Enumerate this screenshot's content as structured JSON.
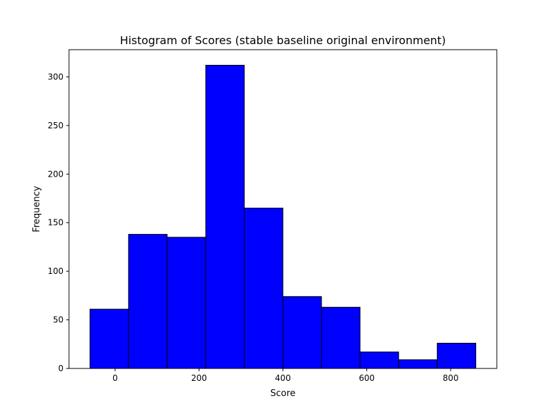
{
  "chart_data": {
    "type": "bar",
    "title": "Histogram of Scores (stable baseline original environment)",
    "xlabel": "Score",
    "ylabel": "Frequency",
    "bin_edges": [
      -60,
      32,
      124,
      216,
      308,
      400,
      492,
      584,
      676,
      768,
      860
    ],
    "values": [
      61,
      138,
      135,
      312,
      165,
      74,
      63,
      17,
      9,
      26
    ],
    "xlim": [
      -110,
      910
    ],
    "ylim": [
      0,
      328
    ],
    "xticks": [
      0,
      200,
      400,
      600,
      800
    ],
    "yticks": [
      0,
      50,
      100,
      150,
      200,
      250,
      300
    ],
    "grid": false,
    "bar_color": "#0000ff",
    "edge_color": "#000000"
  }
}
